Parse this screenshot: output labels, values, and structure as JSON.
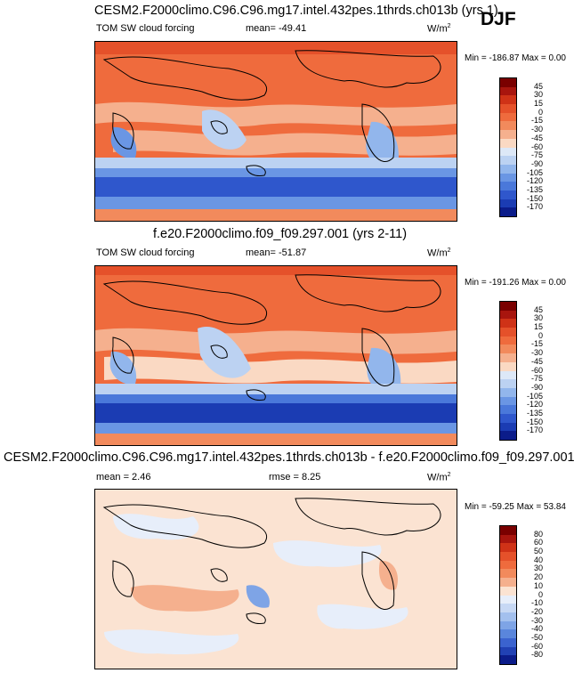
{
  "season": "DJF",
  "panels": [
    {
      "title": "CESM2.F2000climo.C96.C96.mg17.intel.432pes.1thrds.ch013b (yrs 1)",
      "variable": "TOM SW cloud forcing",
      "stat": "mean= -49.41",
      "units": "W/m",
      "units_sup": "2",
      "minmax": "Min = -186.87 Max =   0.00",
      "colorbar": {
        "labels": [
          "45",
          "30",
          "15",
          "0",
          "-15",
          "-30",
          "-45",
          "-60",
          "-75",
          "-90",
          "-105",
          "-120",
          "-135",
          "-150",
          "-170"
        ],
        "colors": [
          "#7a0000",
          "#a8150e",
          "#cf3217",
          "#e5512a",
          "#ef6b3d",
          "#f28a5c",
          "#f5b08e",
          "#fad9c3",
          "#dde8f7",
          "#bcd2f2",
          "#92b6ec",
          "#6a96e4",
          "#4a78da",
          "#2f57cc",
          "#1b3cb3",
          "#0b1c8a"
        ]
      }
    },
    {
      "title": "f.e20.F2000climo.f09_f09.297.001 (yrs 2-11)",
      "variable": "TOM SW cloud forcing",
      "stat": "mean= -51.87",
      "units": "W/m",
      "units_sup": "2",
      "minmax": "Min = -191.26 Max =   0.00",
      "colorbar": {
        "labels": [
          "45",
          "30",
          "15",
          "0",
          "-15",
          "-30",
          "-45",
          "-60",
          "-75",
          "-90",
          "-105",
          "-120",
          "-135",
          "-150",
          "-170"
        ],
        "colors": [
          "#7a0000",
          "#a8150e",
          "#cf3217",
          "#e5512a",
          "#ef6b3d",
          "#f28a5c",
          "#f5b08e",
          "#fad9c3",
          "#dde8f7",
          "#bcd2f2",
          "#92b6ec",
          "#6a96e4",
          "#4a78da",
          "#2f57cc",
          "#1b3cb3",
          "#0b1c8a"
        ]
      }
    },
    {
      "title": "CESM2.F2000climo.C96.C96.mg17.intel.432pes.1thrds.ch013b - f.e20.F2000climo.f09_f09.297.001",
      "stat": "mean =   2.46",
      "rmse": "rmse =   8.25",
      "units": "W/m",
      "units_sup": "2",
      "minmax": "Min = -59.25 Max = 53.84",
      "colorbar": {
        "labels": [
          "80",
          "60",
          "50",
          "40",
          "30",
          "20",
          "10",
          "0",
          "-10",
          "-20",
          "-30",
          "-40",
          "-50",
          "-60",
          "-80"
        ],
        "colors": [
          "#7a0000",
          "#a8150e",
          "#cf3217",
          "#e5512a",
          "#ef6b3d",
          "#f28a5c",
          "#f5b08e",
          "#fbe3d2",
          "#e7eefa",
          "#c7d8f4",
          "#a3c0ee",
          "#7ea4e6",
          "#5a86dc",
          "#3b63cf",
          "#2141b4",
          "#0b1c8a"
        ]
      }
    }
  ]
}
